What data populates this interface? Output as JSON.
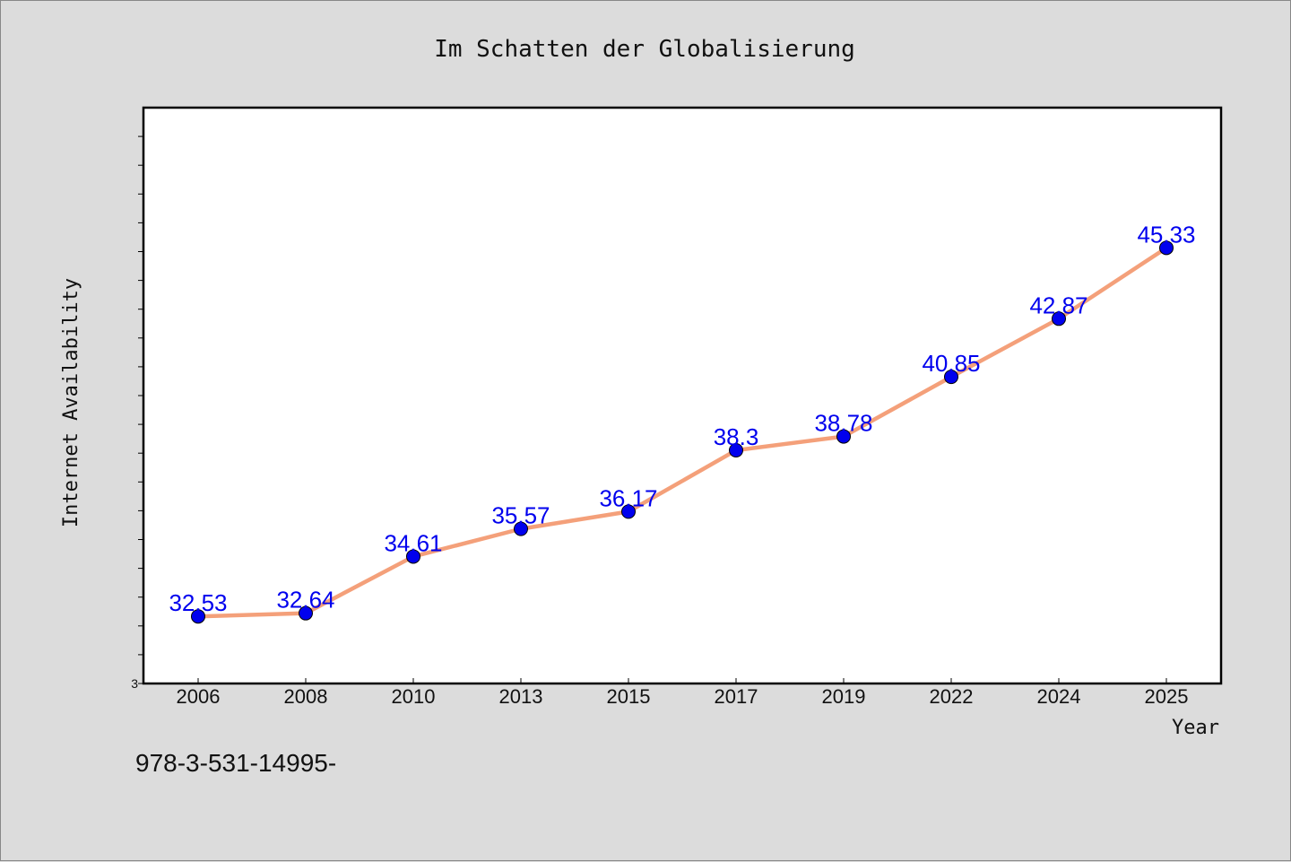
{
  "colors": {
    "background": "#dcdcdc",
    "plot_background": "#ffffff",
    "line": "#f4a07a",
    "marker": "#0000ee",
    "data_label": "#0000ee",
    "axis": "#000000"
  },
  "footnote": "978-3-531-14995-",
  "chart_data": {
    "type": "line",
    "title": "Im Schatten der Globalisierung",
    "xlabel": "Year",
    "ylabel": "Internet Availability",
    "categories": [
      "2006",
      "2008",
      "2010",
      "2013",
      "2015",
      "2017",
      "2019",
      "2022",
      "2024",
      "2025"
    ],
    "series": [
      {
        "values": [
          32.53,
          32.64,
          34.61,
          35.57,
          36.17,
          38.3,
          38.78,
          40.85,
          42.87,
          45.33
        ],
        "labels": [
          "32.53",
          "32.64",
          "34.61",
          "35.57",
          "36.17",
          "38.3",
          "38.78",
          "40.85",
          "42.87",
          "45.33"
        ]
      }
    ],
    "ylim": [
      30.2,
      50.2
    ],
    "ytick_labels": [
      "3"
    ],
    "grid": false,
    "legend": "none"
  }
}
